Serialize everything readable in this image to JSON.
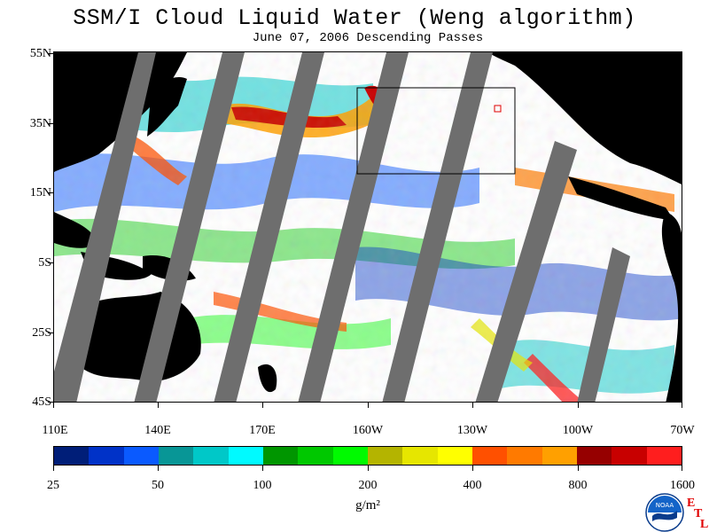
{
  "title": "SSM/I Cloud Liquid Water (Weng algorithm)",
  "subtitle": "June 07, 2006  Descending Passes",
  "lat_labels": [
    "55N",
    "35N",
    "15N",
    "5S",
    "25S",
    "45S"
  ],
  "lon_labels": [
    "110E",
    "140E",
    "170E",
    "160W",
    "130W",
    "100W",
    "70W"
  ],
  "colorbar": {
    "labels": [
      "25",
      "50",
      "100",
      "200",
      "400",
      "800",
      "1600"
    ],
    "units": "g/m²",
    "colors": [
      "#001e78",
      "#0032c8",
      "#0a5aff",
      "#089696",
      "#00c8c8",
      "#00faff",
      "#009600",
      "#00c800",
      "#00fa00",
      "#b4b400",
      "#e6e600",
      "#ffff00",
      "#ff5000",
      "#ff7a00",
      "#ffa000",
      "#960000",
      "#c80000",
      "#ff1e1e"
    ]
  },
  "logo": {
    "text": "NOAA",
    "etl": [
      "E",
      "T",
      "L"
    ]
  },
  "map_colors": {
    "land": "#000000",
    "swath_gap": "#6e6e6e",
    "background": "#ffffff"
  }
}
